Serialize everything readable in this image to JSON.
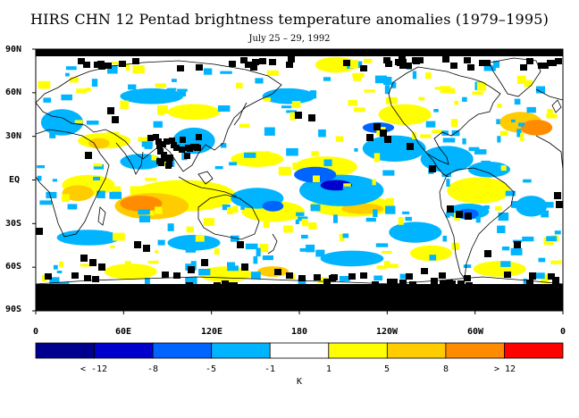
{
  "title": "HIRS CHN 12 Pentad brightness temperature anomalies (1979–1995)",
  "subtitle": "July 25 – 29, 1992",
  "lat_labels": [
    "90N",
    "60N",
    "30N",
    "EQ",
    "30S",
    "60S",
    "90S"
  ],
  "lon_labels": [
    "0",
    "60E",
    "120E",
    "180",
    "120W",
    "60W",
    "0"
  ],
  "legend": {
    "unit": "K",
    "colors": [
      "#00008f",
      "#0000cd",
      "#0064ff",
      "#00b4ff",
      "#ffffff",
      "#ffff00",
      "#ffcc00",
      "#ff8c00",
      "#ff0000"
    ],
    "labels": [
      "< -12",
      "-8",
      "-5",
      "-1",
      "1",
      "5",
      "8",
      "> 12"
    ]
  },
  "colors": {
    "missing": "#000000",
    "background": "#ffffff"
  }
}
